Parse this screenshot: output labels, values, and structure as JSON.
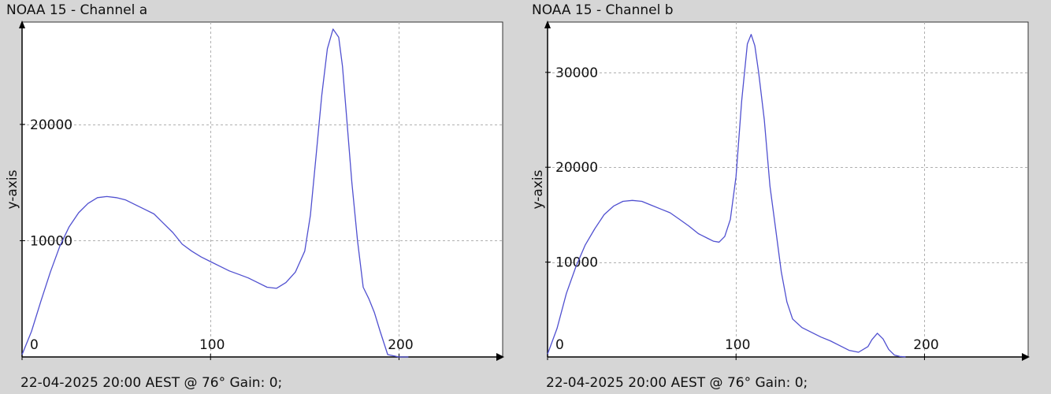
{
  "chart_data": [
    {
      "type": "line",
      "title": "NOAA 15 - Channel a",
      "ylabel": "y-axis",
      "xlabel": "",
      "footer": "22-04-2025 20:00 AEST @ 76° Gain: 0;",
      "xlim": [
        0,
        255
      ],
      "ylim": [
        0,
        28800
      ],
      "x_ticks": [
        0,
        100,
        200
      ],
      "y_ticks": [
        10000,
        20000
      ],
      "grid": true,
      "line_color": "#5050d0",
      "series": [
        {
          "x": [
            0,
            5,
            10,
            15,
            20,
            25,
            30,
            35,
            40,
            45,
            50,
            55,
            60,
            65,
            70,
            75,
            80,
            85,
            90,
            95,
            100,
            105,
            110,
            115,
            120,
            125,
            130,
            135,
            140,
            145,
            150,
            153,
            156,
            159,
            162,
            165,
            168,
            170,
            172,
            175,
            178,
            181,
            184,
            187,
            190,
            194,
            197,
            200,
            205
          ],
          "y": [
            200,
            2200,
            4800,
            7300,
            9500,
            11200,
            12400,
            13200,
            13700,
            13800,
            13700,
            13500,
            13100,
            12700,
            12300,
            11500,
            10700,
            9700,
            9100,
            8600,
            8200,
            7800,
            7400,
            7100,
            6800,
            6400,
            6000,
            5900,
            6400,
            7300,
            9100,
            12200,
            17300,
            22500,
            26500,
            28200,
            27500,
            25000,
            21000,
            15000,
            10000,
            6000,
            5000,
            3800,
            2200,
            200,
            100,
            0,
            0
          ]
        }
      ]
    },
    {
      "type": "line",
      "title": "NOAA 15 - Channel b",
      "ylabel": "y-axis",
      "xlabel": "",
      "footer": "22-04-2025 20:00 AEST @ 76° Gain: 0;",
      "xlim": [
        0,
        255
      ],
      "ylim": [
        0,
        35300
      ],
      "x_ticks": [
        0,
        100,
        200
      ],
      "y_ticks": [
        10000,
        20000,
        30000
      ],
      "grid": true,
      "line_color": "#5050d0",
      "series": [
        {
          "x": [
            0,
            5,
            10,
            15,
            20,
            25,
            30,
            35,
            40,
            45,
            50,
            55,
            60,
            65,
            70,
            75,
            80,
            85,
            88,
            91,
            94,
            97,
            100,
            103,
            106,
            108,
            110,
            112,
            115,
            118,
            121,
            124,
            127,
            130,
            135,
            140,
            145,
            150,
            155,
            160,
            165,
            170,
            172,
            175,
            178,
            181,
            184,
            187,
            190
          ],
          "y": [
            300,
            3000,
            6700,
            9500,
            11800,
            13500,
            15000,
            15900,
            16400,
            16500,
            16400,
            16000,
            15600,
            15200,
            14500,
            13800,
            13000,
            12500,
            12200,
            12100,
            12700,
            14500,
            19000,
            27000,
            33000,
            34000,
            32800,
            30000,
            25000,
            18000,
            13500,
            9000,
            5800,
            4000,
            3100,
            2600,
            2100,
            1700,
            1200,
            700,
            500,
            1100,
            1800,
            2500,
            1900,
            800,
            200,
            50,
            0
          ]
        }
      ]
    }
  ]
}
